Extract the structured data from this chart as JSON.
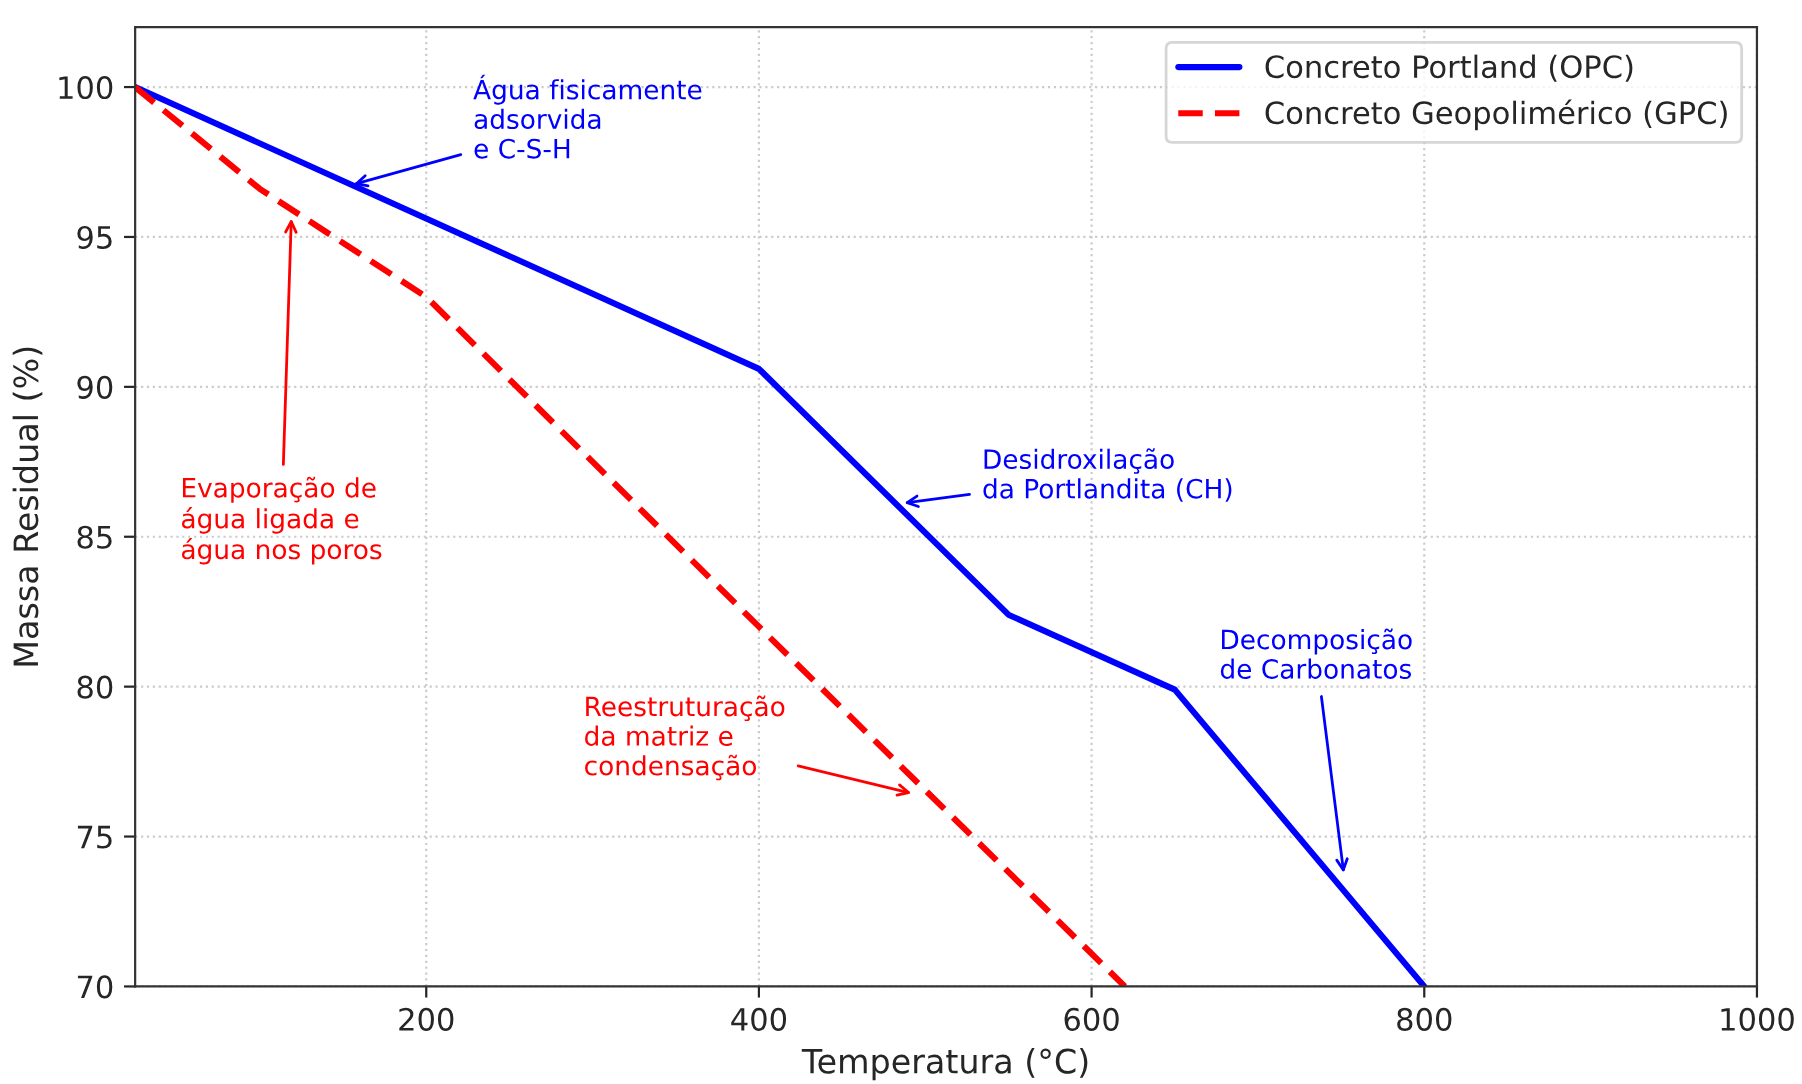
{
  "chart_data": {
    "type": "line",
    "xlabel": "Temperatura (°C)",
    "ylabel": "Massa Residual (%)",
    "series": [
      {
        "name": "Concreto Portland (OPC)",
        "color": "#0000ff",
        "line_style": "solid",
        "x": [
          25,
          400,
          550,
          650,
          800
        ],
        "values": [
          100,
          90.6,
          82.4,
          79.9,
          70
        ]
      },
      {
        "name": "Concreto Geopolimérico (GPC)",
        "color": "#ff0000",
        "line_style": "dashed",
        "x": [
          25,
          100,
          200,
          400,
          620
        ],
        "values": [
          100,
          96.6,
          93,
          82,
          70
        ]
      }
    ],
    "annotations": [
      {
        "text": "Água fisicamente\nadsorvida\ne C-S-H",
        "x": 153,
        "y": 96.7
      },
      {
        "text": "Evaporação de\nágua ligada e\nágua nos poros",
        "x": 119,
        "y": 95.8
      },
      {
        "text": "Desidroxilação\nda Portlandita (CH)",
        "x": 484,
        "y": 86.1
      },
      {
        "text": "Decomposição\nde Carbonatos",
        "x": 752,
        "y": 73.6
      },
      {
        "text": "Reestruturação\nda matriz e\ncondensação",
        "x": 495,
        "y": 76.4
      }
    ],
    "xlim": [
      25,
      1000
    ],
    "ylim": [
      70,
      102
    ],
    "xticks": [
      200,
      400,
      600,
      800,
      1000
    ],
    "yticks": [
      70,
      75,
      80,
      85,
      90,
      95,
      100
    ],
    "grid": true,
    "legend": "top right",
    "marker": "none"
  }
}
